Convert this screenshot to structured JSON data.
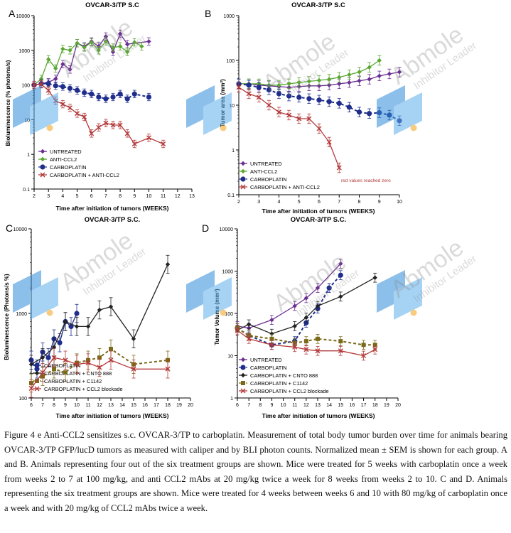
{
  "caption": "Figure 4 e Anti-CCL2 sensitizes s.c. OVCAR-3/TP to carboplatin. Measurement of total body tumor burden over time for animals bearing OVCAR-3/TP GFP/lucD tumors as measured with caliper and by BLI photon counts. Normalized mean ± SEM is shown for each group. A and B. Animals representing four out of the six treatment groups are shown. Mice were treated for 5 weeks with carboplatin once a week from weeks 2 to 7 at 100 mg/kg, and anti CCL2 mAbs at 20 mg/kg twice a week for 8 weeks from weeks 2 to 10. C and D. Animals representing the six treatment groups are shown. Mice were treated for 4 weeks between weeks 6 and 10 with 80 mg/kg of carboplatin once a week and with 20 mg/kg of CCL2 mAbs twice a week.",
  "watermark": {
    "brand": "Abmole",
    "tagline": "Inhibitor Leader"
  },
  "colors": {
    "untreated": "#6a2d91",
    "anti_ccl2": "#5aa832",
    "carboplatin": "#1f2d8c",
    "combo": "#b33a3a",
    "cnto": "#222222",
    "c1142": "#7a6a1a"
  },
  "chart_data": [
    {
      "panel": "A",
      "type": "line",
      "title": "OVCAR-3/TP S.C",
      "xlabel": "Time after initiation of tumors (WEEKS)",
      "ylabel": "Bioluminescence (% photons/s)",
      "xlim": [
        2,
        13
      ],
      "ylim": [
        0.1,
        10000
      ],
      "yscale": "log",
      "xticks": [
        "2",
        "3",
        "4",
        "5",
        "6",
        "7",
        "8",
        "9",
        "10",
        "11",
        "12",
        "13"
      ],
      "yticks": [
        "0.1",
        "1",
        "10",
        "100",
        "1000",
        "10000"
      ],
      "series": [
        {
          "name": "UNTREATED",
          "key": "untreated",
          "marker": "diamond",
          "dash": false,
          "x": [
            2,
            2.5,
            3,
            3.5,
            4,
            4.5,
            5,
            5.5,
            6,
            6.5,
            7,
            7.5,
            8,
            8.5,
            10
          ],
          "y": [
            100,
            110,
            120,
            150,
            400,
            280,
            1600,
            1300,
            1800,
            1300,
            2500,
            900,
            3000,
            1500,
            1800
          ]
        },
        {
          "name": "ANTI-CCL2",
          "key": "anti_ccl2",
          "marker": "diamond",
          "dash": false,
          "x": [
            2,
            2.5,
            3,
            3.5,
            4,
            4.5,
            5,
            5.5,
            6,
            6.5,
            7,
            7.5,
            8,
            8.5,
            9,
            9.5
          ],
          "y": [
            100,
            150,
            550,
            300,
            1100,
            1000,
            1600,
            1200,
            1700,
            1000,
            1800,
            1200,
            1300,
            900,
            1700,
            1300
          ]
        },
        {
          "name": "CARBOPLATIN",
          "key": "carboplatin",
          "marker": "circle",
          "dash": true,
          "x": [
            2,
            2.5,
            3,
            3.5,
            4,
            4.5,
            5,
            5.5,
            6,
            6.5,
            7,
            7.5,
            8,
            8.5,
            9,
            10
          ],
          "y": [
            100,
            110,
            110,
            95,
            90,
            80,
            70,
            60,
            55,
            45,
            40,
            45,
            55,
            40,
            55,
            45
          ]
        },
        {
          "name": "CARBOPLATIN + ANTI-CCL2",
          "key": "combo",
          "marker": "x",
          "dash": false,
          "x": [
            2,
            2.5,
            3,
            3.5,
            4,
            4.5,
            5,
            5.5,
            6,
            6.5,
            7,
            7.5,
            8,
            8.5,
            9,
            10,
            11
          ],
          "y": [
            100,
            105,
            70,
            35,
            28,
            22,
            15,
            12,
            4,
            6,
            8,
            7,
            7,
            4,
            2,
            3,
            2
          ]
        }
      ]
    },
    {
      "panel": "B",
      "type": "line",
      "title": "OVCAR-3/TP S.C",
      "xlabel": "Time after initiation of tumors (WEEKS)",
      "ylabel": "Tumor area (mm²)",
      "xlim": [
        2,
        10
      ],
      "ylim": [
        0.1,
        1000
      ],
      "yscale": "log",
      "xticks": [
        "2",
        "3",
        "4",
        "5",
        "6",
        "7",
        "8",
        "9",
        "10"
      ],
      "yticks": [
        "0.1",
        "1",
        "10",
        "100",
        "1000"
      ],
      "annotation": "red values reached zero",
      "series": [
        {
          "name": "UNTREATED",
          "key": "untreated",
          "marker": "diamond",
          "dash": false,
          "x": [
            2,
            2.5,
            3,
            3.5,
            4,
            4.5,
            5,
            5.5,
            6,
            6.5,
            7,
            7.5,
            8,
            8.5,
            9,
            9.5,
            10
          ],
          "y": [
            30,
            30,
            28,
            27,
            26,
            25,
            26,
            27,
            27,
            28,
            30,
            32,
            35,
            38,
            45,
            50,
            55
          ]
        },
        {
          "name": "ANTI-CCL2",
          "key": "anti_ccl2",
          "marker": "diamond",
          "dash": false,
          "x": [
            2,
            2.5,
            3,
            3.5,
            4,
            4.5,
            5,
            5.5,
            6,
            6.5,
            7,
            7.5,
            8,
            8.5,
            9
          ],
          "y": [
            30,
            30,
            30,
            28,
            28,
            30,
            32,
            34,
            36,
            38,
            42,
            48,
            55,
            70,
            100
          ]
        },
        {
          "name": "CARBOPLATIN",
          "key": "carboplatin",
          "marker": "circle",
          "dash": true,
          "x": [
            2,
            2.5,
            3,
            3.5,
            4,
            4.5,
            5,
            5.5,
            6,
            6.5,
            7,
            7.5,
            8,
            8.5,
            9,
            9.5,
            10
          ],
          "y": [
            30,
            28,
            25,
            22,
            18,
            16,
            15,
            14,
            13,
            12,
            11,
            9,
            7,
            6.5,
            6.8,
            6,
            4.5
          ]
        },
        {
          "name": "CARBOPLATIN + ANTI-CCL2",
          "key": "combo",
          "marker": "x",
          "dash": false,
          "x": [
            2,
            2.5,
            3,
            3.5,
            4,
            4.5,
            5,
            5.5,
            6,
            6.5,
            7
          ],
          "y": [
            25,
            18,
            15,
            10,
            7,
            6,
            5,
            5,
            3,
            1.5,
            0.4
          ]
        }
      ]
    },
    {
      "panel": "C",
      "type": "line",
      "title": "OVCAR-3/TP S.C.",
      "xlabel": "Time after initiation of tumors (WEEKS)",
      "ylabel": "Bioluminescence (Photons/s %)",
      "xlim": [
        6,
        20
      ],
      "ylim": [
        100,
        10000
      ],
      "yscale": "log",
      "xticks": [
        "6",
        "7",
        "8",
        "9",
        "10",
        "11",
        "12",
        "13",
        "14",
        "15",
        "16",
        "17",
        "18",
        "19",
        "20"
      ],
      "yticks": [
        "100",
        "1000",
        "10000"
      ],
      "series": [
        {
          "name": "CARBOPLATIN",
          "key": "carboplatin",
          "marker": "circle",
          "dash": false,
          "x": [
            6,
            6.5,
            7,
            7.5,
            8,
            8.5,
            9,
            9.5,
            10
          ],
          "y": [
            280,
            220,
            350,
            300,
            500,
            450,
            800,
            700,
            1000
          ]
        },
        {
          "name": "CARBOPLATIN + CNTO 888",
          "key": "cnto",
          "marker": "diamond",
          "dash": false,
          "x": [
            6,
            7,
            8,
            9,
            10,
            11,
            12,
            13,
            15,
            18
          ],
          "y": [
            250,
            300,
            400,
            800,
            700,
            700,
            1100,
            1200,
            500,
            3800
          ]
        },
        {
          "name": "CARBOPLATIN + C1142",
          "key": "c1142",
          "marker": "square",
          "dash": true,
          "x": [
            6,
            7,
            8,
            9,
            10,
            11,
            12,
            13,
            15,
            18
          ],
          "y": [
            150,
            180,
            220,
            200,
            260,
            280,
            300,
            380,
            250,
            280
          ]
        },
        {
          "name": "CARBOPLATIN + CCL2 blockade",
          "key": "combo",
          "marker": "x",
          "dash": false,
          "x": [
            6,
            7,
            8,
            9,
            10,
            11,
            12,
            13,
            15,
            18
          ],
          "y": [
            130,
            200,
            300,
            280,
            250,
            260,
            230,
            280,
            220,
            220
          ]
        }
      ]
    },
    {
      "panel": "D",
      "type": "line",
      "title": "OVCAR-3/TP S.C.",
      "xlabel": "Time after initiation of tumors (WEEKS)",
      "ylabel": "Tumor Volume (mm³)",
      "xlim": [
        6,
        20
      ],
      "ylim": [
        1,
        10000
      ],
      "yscale": "log",
      "xticks": [
        "6",
        "7",
        "8",
        "9",
        "10",
        "11",
        "12",
        "13",
        "14",
        "15",
        "16",
        "17",
        "18",
        "19",
        "20"
      ],
      "yticks": [
        "1",
        "10",
        "100",
        "1000",
        "10000"
      ],
      "series": [
        {
          "name": "UNTREATED",
          "key": "untreated",
          "marker": "diamond",
          "dash": false,
          "x": [
            6,
            7,
            9,
            11,
            12,
            13,
            15
          ],
          "y": [
            50,
            45,
            70,
            150,
            230,
            400,
            1500
          ]
        },
        {
          "name": "CARBOPLATIN",
          "key": "carboplatin",
          "marker": "circle",
          "dash": true,
          "x": [
            6,
            7,
            9,
            11,
            12,
            13,
            14,
            15
          ],
          "y": [
            45,
            30,
            18,
            22,
            60,
            130,
            400,
            800
          ]
        },
        {
          "name": "CARBOPLATIN + CNTO 888",
          "key": "cnto",
          "marker": "diamond",
          "dash": false,
          "x": [
            6,
            7,
            9,
            11,
            12,
            13,
            15,
            18
          ],
          "y": [
            40,
            55,
            33,
            50,
            80,
            150,
            250,
            700
          ]
        },
        {
          "name": "CARBOPLATIN + C1142",
          "key": "c1142",
          "marker": "square",
          "dash": true,
          "x": [
            6,
            7,
            9,
            11,
            12,
            13,
            15,
            17,
            18
          ],
          "y": [
            45,
            30,
            25,
            20,
            22,
            25,
            22,
            18,
            18
          ]
        },
        {
          "name": "CARBOPLATIN + CCL2 blockade",
          "key": "combo",
          "marker": "x",
          "dash": false,
          "x": [
            6,
            7,
            9,
            11,
            12,
            13,
            15,
            17,
            18
          ],
          "y": [
            40,
            25,
            18,
            16,
            14,
            13,
            13,
            10,
            14
          ]
        }
      ]
    }
  ]
}
